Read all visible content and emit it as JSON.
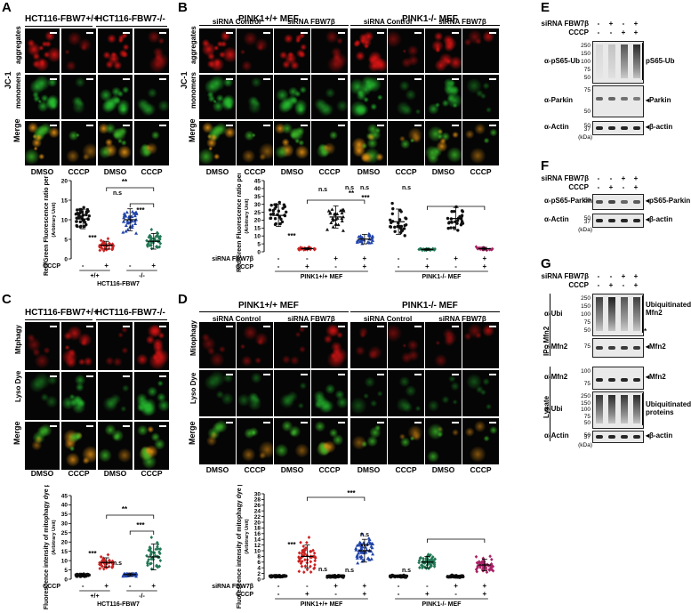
{
  "panel_letters": [
    "A",
    "B",
    "C",
    "D",
    "E",
    "F",
    "G"
  ],
  "A": {
    "col_headers": [
      "HCT116-FBW7+/+",
      "HCT116-FBW7-/-"
    ],
    "row_labels": {
      "group": "JC-1",
      "agg": "aggregates",
      "mono": "monomers",
      "merge": "Merge"
    },
    "treatments": [
      "DMSO",
      "CCCP",
      "DMSO",
      "CCCP"
    ]
  },
  "B": {
    "col_headers": [
      "PINK1+/+ MEF",
      "PINK1-/- MEF"
    ],
    "sub_headers": [
      "siRNA Control",
      "siRNA FBW7β",
      "siRNA Control",
      "siRNA FBW7β"
    ],
    "row_labels": {
      "group": "JC-1",
      "agg": "aggregates",
      "mono": "monomers",
      "merge": "Merge"
    },
    "treatments": [
      "DMSO",
      "CCCP",
      "DMSO",
      "CCCP",
      "DMSO",
      "CCCP",
      "DMSO",
      "CCCP"
    ]
  },
  "C": {
    "col_headers": [
      "HCT116-FBW7+/+",
      "HCT116-FBW7-/-"
    ],
    "row_labels": {
      "mito": "Mtphagy",
      "lyso": "Lyso Dye",
      "merge": "Merge"
    },
    "treatments": [
      "DMSO",
      "CCCP",
      "DMSO",
      "CCCP"
    ]
  },
  "D": {
    "col_headers": [
      "PINK1+/+ MEF",
      "PINK1-/- MEF"
    ],
    "sub_headers": [
      "siRNA Control",
      "siRNA FBW7β",
      "siRNA Control",
      "siRNA FBW7β"
    ],
    "row_labels": {
      "mito": "Mitophagy",
      "lyso": "Lyso Dye",
      "merge": "Merge"
    },
    "treatments": [
      "DMSO",
      "CCCP",
      "DMSO",
      "CCCP",
      "DMSO",
      "CCCP",
      "DMSO",
      "CCCP"
    ]
  },
  "E": {
    "conds": [
      {
        "label": "siRNA FBW7β",
        "marks": [
          "-",
          "+",
          "-",
          "+"
        ]
      },
      {
        "label": "CCCP",
        "marks": [
          "-",
          "-",
          "+",
          "+"
        ]
      }
    ],
    "blots": [
      {
        "antibody": "α-pS65-Ub",
        "mw": [
          "250",
          "150",
          "100",
          "75",
          "50"
        ],
        "target": "pS65-Ub"
      },
      {
        "antibody": "α-Parkin",
        "mw": [
          "75",
          "50"
        ],
        "target": "Parkin"
      },
      {
        "antibody": "α-Actin",
        "mw": [
          "50",
          "37"
        ],
        "target": "β-actin"
      }
    ],
    "kda": "(kDa)"
  },
  "F": {
    "conds": [
      {
        "label": "siRNA FBW7β",
        "marks": [
          "-",
          "-",
          "+",
          "+"
        ]
      },
      {
        "label": "CCCP",
        "marks": [
          "-",
          "+",
          "-",
          "+"
        ]
      }
    ],
    "blots": [
      {
        "antibody": "α-pS65-Parkin",
        "mw": [
          "50"
        ],
        "target": "pS65-Parkin"
      },
      {
        "antibody": "α-Actin",
        "mw": [
          "50",
          "37"
        ],
        "target": "β-actin"
      }
    ],
    "kda": "(kDa)"
  },
  "G": {
    "conds": [
      {
        "label": "siRNA FBW7β",
        "marks": [
          "-",
          "-",
          "+",
          "+"
        ]
      },
      {
        "label": "CCCP",
        "marks": [
          "-",
          "+",
          "-",
          "+"
        ]
      }
    ],
    "ip_label": "IP : Mfn2",
    "lysate_label": "Lysate",
    "blots": [
      {
        "antibody": "α-Ubi",
        "mw": [
          "250",
          "150",
          "100",
          "75",
          "50"
        ],
        "target": "Ubiquitinated Mfn2"
      },
      {
        "antibody": "α-Mfn2",
        "mw": [
          "75"
        ],
        "target": "Mfn2"
      },
      {
        "antibody": "α-Mfn2",
        "mw": [
          "100",
          "75"
        ],
        "target": "Mfn2"
      },
      {
        "antibody": "α-Ubi",
        "mw": [
          "250",
          "150",
          "100",
          "75",
          "50"
        ],
        "target": "Ubiquitinated proteins"
      },
      {
        "antibody": "α-Actin",
        "mw": [
          "50",
          "37"
        ],
        "target": "β-actin"
      }
    ],
    "star": "*",
    "kda": "(kDa)"
  },
  "chart_data": [
    {
      "id": "A-plot",
      "type": "scatter",
      "ylabel": "Red/Green Fluorescence ratio per cell",
      "ylabel_unit": "(Arbitrary Unit)",
      "ylim": [
        0,
        20
      ],
      "yticks": [
        0,
        5,
        10,
        15,
        20
      ],
      "condition_rows": [
        {
          "label": "CCCP",
          "marks": [
            "-",
            "+",
            "-",
            "+"
          ]
        }
      ],
      "group_labels": [
        "+/+",
        "-/-"
      ],
      "xtitle": "HCT116-FBW7",
      "series": [
        {
          "mean": 10.2,
          "sd": 2.5,
          "color": "#111111",
          "marker": "circle"
        },
        {
          "mean": 3.5,
          "sd": 1.0,
          "color": "#cc2222",
          "marker": "diamond"
        },
        {
          "mean": 10.0,
          "sd": 2.8,
          "color": "#2244aa",
          "marker": "triangle"
        },
        {
          "mean": 4.5,
          "sd": 2.0,
          "color": "#227755",
          "marker": "diamond"
        }
      ],
      "annotations": [
        "***",
        "n.s",
        "***",
        "**"
      ]
    },
    {
      "id": "B-plot",
      "type": "scatter",
      "ylabel": "Red/Green Fluorescence ratio per cell",
      "ylabel_unit": "(Arbitrary Unit)",
      "ylim": [
        0,
        45
      ],
      "yticks": [
        0,
        5,
        10,
        15,
        20,
        25,
        30,
        35,
        40,
        45
      ],
      "condition_rows": [
        {
          "label": "siRNA FBW7β",
          "marks": [
            "-",
            "-",
            "+",
            "+",
            "-",
            "-",
            "+",
            "+"
          ]
        },
        {
          "label": "CCCP",
          "marks": [
            "-",
            "+",
            "-",
            "+",
            "-",
            "+",
            "-",
            "+"
          ]
        }
      ],
      "group_labels": [
        "PINK1+/+ MEF",
        "PINK1-/- MEF"
      ],
      "series": [
        {
          "mean": 23,
          "sd": 7,
          "color": "#111111",
          "marker": "circle"
        },
        {
          "mean": 2,
          "sd": 0.6,
          "color": "#cc2222",
          "marker": "diamond"
        },
        {
          "mean": 22,
          "sd": 7,
          "color": "#111111",
          "marker": "triangle"
        },
        {
          "mean": 8,
          "sd": 3,
          "color": "#2244aa",
          "marker": "triangle"
        },
        {
          "mean": 19,
          "sd": 8,
          "color": "#111111",
          "marker": "circle"
        },
        {
          "mean": 1.5,
          "sd": 0.5,
          "color": "#227755",
          "marker": "diamond"
        },
        {
          "mean": 21,
          "sd": 7,
          "color": "#111111",
          "marker": "circle"
        },
        {
          "mean": 2,
          "sd": 0.8,
          "color": "#aa2266",
          "marker": "diamond"
        }
      ],
      "annotations": [
        "***",
        "n.s",
        "**",
        "n.s",
        "***",
        "n.s",
        "n.s"
      ]
    },
    {
      "id": "C-plot",
      "type": "scatter",
      "ylabel": "Fluorescence intensity of mitophagy dye per cell",
      "ylabel_unit": "(Arbitrary Unit)",
      "ylim": [
        0,
        45
      ],
      "yticks": [
        0,
        5,
        10,
        15,
        20,
        25,
        30,
        35,
        40,
        45
      ],
      "condition_rows": [
        {
          "label": "CCCP",
          "marks": [
            "-",
            "+",
            "-",
            "+"
          ]
        }
      ],
      "group_labels": [
        "+/+",
        "-/-"
      ],
      "xtitle": "HCT116-FBW7",
      "series": [
        {
          "mean": 2,
          "sd": 0.7,
          "color": "#111111",
          "marker": "circle"
        },
        {
          "mean": 9,
          "sd": 2.5,
          "color": "#cc2222",
          "marker": "diamond"
        },
        {
          "mean": 2.5,
          "sd": 0.8,
          "color": "#2244aa",
          "marker": "triangle"
        },
        {
          "mean": 12,
          "sd": 7,
          "color": "#227755",
          "marker": "diamond"
        }
      ],
      "annotations": [
        "***",
        "n.s",
        "***",
        "**"
      ]
    },
    {
      "id": "D-plot",
      "type": "scatter",
      "ylabel": "Fluorescence intensity of mitophagy dye per cell",
      "ylabel_unit": "(Arbitrary Unit)",
      "ylim": [
        0,
        30
      ],
      "yticks": [
        0,
        2,
        4,
        6,
        8,
        10,
        12,
        14,
        16,
        18,
        20,
        22,
        24,
        26,
        28,
        30
      ],
      "condition_rows": [
        {
          "label": "siRNA FBW7β",
          "marks": [
            "-",
            "-",
            "+",
            "+",
            "-",
            "-",
            "+",
            "+"
          ]
        },
        {
          "label": "CCCP",
          "marks": [
            "-",
            "+",
            "-",
            "+",
            "-",
            "+",
            "-",
            "+"
          ]
        }
      ],
      "group_labels": [
        "PINK1+/+ MEF",
        "PINK1-/- MEF"
      ],
      "series": [
        {
          "mean": 1,
          "sd": 0.3,
          "color": "#111111",
          "marker": "circle"
        },
        {
          "mean": 8,
          "sd": 4,
          "color": "#cc2222",
          "marker": "diamond"
        },
        {
          "mean": 1,
          "sd": 0.3,
          "color": "#111111",
          "marker": "circle"
        },
        {
          "mean": 10,
          "sd": 4,
          "color": "#2244aa",
          "marker": "triangle"
        },
        {
          "mean": 1,
          "sd": 0.3,
          "color": "#111111",
          "marker": "circle"
        },
        {
          "mean": 6,
          "sd": 2,
          "color": "#227755",
          "marker": "diamond"
        },
        {
          "mean": 1,
          "sd": 0.3,
          "color": "#111111",
          "marker": "circle"
        },
        {
          "mean": 5,
          "sd": 2,
          "color": "#aa2266",
          "marker": "diamond"
        }
      ],
      "annotations": [
        "***",
        "n.s",
        "***",
        "n.s",
        "***",
        "n.s",
        "n.s"
      ]
    }
  ]
}
